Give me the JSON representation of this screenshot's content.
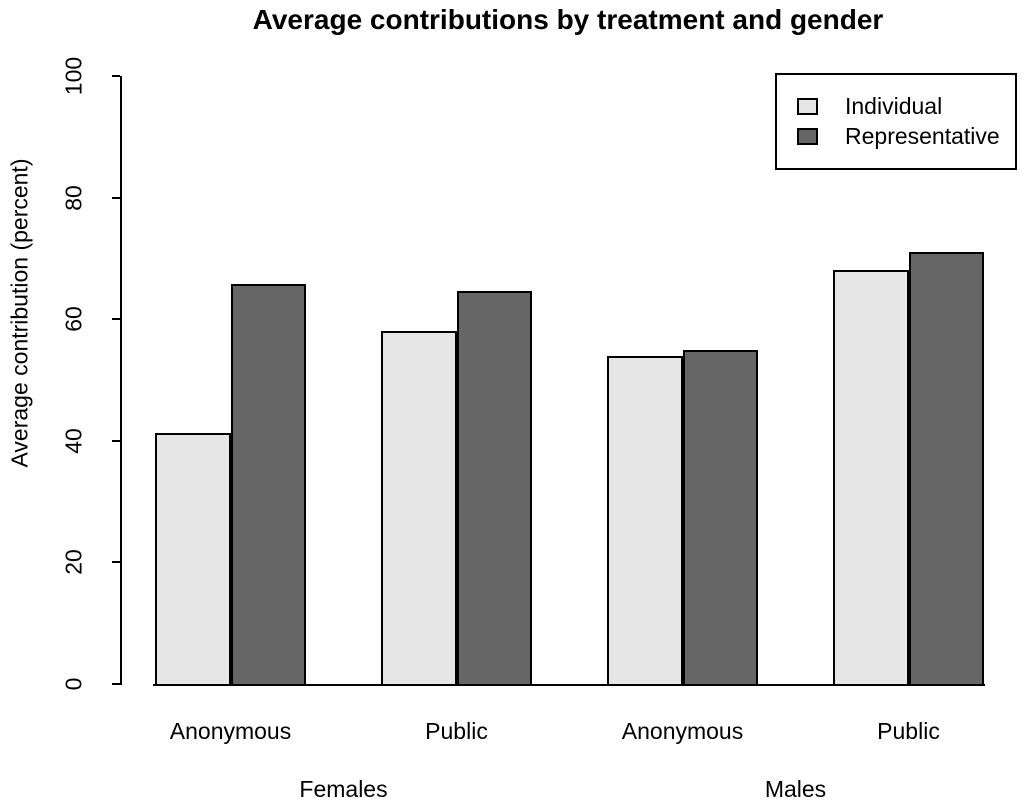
{
  "chart_data": {
    "type": "bar",
    "title": "Average contributions by treatment and gender",
    "xlabel": "",
    "ylabel": "Average contribution (percent)",
    "ylim": [
      0,
      100
    ],
    "yticks": [
      0,
      20,
      40,
      60,
      80,
      100
    ],
    "grid": false,
    "legend_position": "top-right",
    "categories": [
      "Anonymous",
      "Public",
      "Anonymous",
      "Public"
    ],
    "group_labels": [
      "Females",
      "Males"
    ],
    "series": [
      {
        "name": "Individual",
        "color": "#e6e6e6",
        "values": [
          41.3,
          58.1,
          53.9,
          68.1
        ]
      },
      {
        "name": "Representative",
        "color": "#666666",
        "values": [
          65.8,
          64.6,
          54.9,
          71.1
        ]
      }
    ],
    "bar_outline_color": "#000000",
    "background_color": "#ffffff",
    "axis_color": "#000000",
    "text_color": "#000000"
  }
}
